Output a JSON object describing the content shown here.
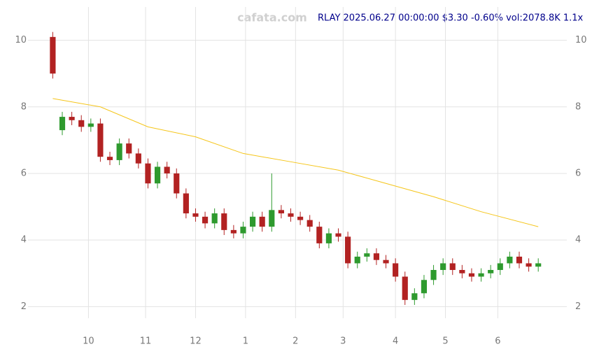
{
  "chart_data": {
    "type": "candlestick",
    "title": "RLAY 2025.06.27 00:00:00 $3.30 -0.60% vol:2078.8K 1.1x",
    "watermark": "cafata.com",
    "x": [
      0,
      4,
      8,
      12,
      16,
      20,
      24,
      28,
      32,
      36,
      40,
      44,
      48,
      52,
      56,
      60,
      64,
      68,
      72,
      76,
      80,
      84,
      88,
      92,
      96,
      100,
      104,
      108,
      112,
      116,
      120,
      124,
      128,
      132,
      136,
      140,
      144,
      148,
      152,
      156,
      160,
      164,
      168,
      172,
      176,
      180,
      184,
      188,
      192,
      196,
      200,
      204
    ],
    "open": [
      10.1,
      7.3,
      7.7,
      7.6,
      7.4,
      7.5,
      6.5,
      6.4,
      6.9,
      6.6,
      6.3,
      5.7,
      6.2,
      6.0,
      5.4,
      4.8,
      4.7,
      4.5,
      4.8,
      4.3,
      4.2,
      4.4,
      4.7,
      4.4,
      4.9,
      4.8,
      4.7,
      4.6,
      4.4,
      3.9,
      4.2,
      4.1,
      3.3,
      3.5,
      3.6,
      3.4,
      3.3,
      2.9,
      2.2,
      2.4,
      2.8,
      3.1,
      3.3,
      3.1,
      3.0,
      2.9,
      3.0,
      3.1,
      3.3,
      3.5,
      3.3,
      3.2
    ],
    "high": [
      10.25,
      7.85,
      7.85,
      7.75,
      7.65,
      7.65,
      6.65,
      7.05,
      7.05,
      6.75,
      6.45,
      6.35,
      6.35,
      6.15,
      5.55,
      4.95,
      4.85,
      4.95,
      4.95,
      4.45,
      4.55,
      4.85,
      4.85,
      6.0,
      5.05,
      4.95,
      4.85,
      4.75,
      4.55,
      4.35,
      4.35,
      4.25,
      3.65,
      3.75,
      3.75,
      3.55,
      3.45,
      3.05,
      2.55,
      2.95,
      3.25,
      3.45,
      3.45,
      3.25,
      3.15,
      3.15,
      3.25,
      3.45,
      3.65,
      3.65,
      3.45,
      3.45
    ],
    "low": [
      8.85,
      7.15,
      7.45,
      7.25,
      7.25,
      6.35,
      6.25,
      6.25,
      6.45,
      6.15,
      5.55,
      5.55,
      5.85,
      5.25,
      4.65,
      4.55,
      4.35,
      4.35,
      4.15,
      4.05,
      4.05,
      4.25,
      4.25,
      4.25,
      4.65,
      4.55,
      4.45,
      4.25,
      3.75,
      3.75,
      3.95,
      3.15,
      3.15,
      3.35,
      3.25,
      3.15,
      2.75,
      2.05,
      2.05,
      2.25,
      2.65,
      2.95,
      2.95,
      2.85,
      2.75,
      2.75,
      2.85,
      2.95,
      3.15,
      3.15,
      3.05,
      3.05
    ],
    "close": [
      9.0,
      7.7,
      7.6,
      7.4,
      7.5,
      6.5,
      6.4,
      6.9,
      6.6,
      6.3,
      5.7,
      6.2,
      6.0,
      5.4,
      4.8,
      4.7,
      4.5,
      4.8,
      4.3,
      4.2,
      4.4,
      4.7,
      4.4,
      4.9,
      4.8,
      4.7,
      4.6,
      4.4,
      3.9,
      4.2,
      4.1,
      3.3,
      3.5,
      3.6,
      3.4,
      3.3,
      2.9,
      2.2,
      2.4,
      2.8,
      3.1,
      3.3,
      3.1,
      3.0,
      2.9,
      3.0,
      3.1,
      3.3,
      3.5,
      3.3,
      3.2,
      3.3
    ],
    "up_color": "#2e9a2e",
    "down_color": "#b22222",
    "line": {
      "color": "#f5c518",
      "x": [
        0,
        20,
        40,
        60,
        80,
        100,
        120,
        140,
        160,
        180,
        204
      ],
      "values": [
        8.25,
        8.0,
        7.4,
        7.1,
        6.6,
        6.35,
        6.1,
        5.7,
        5.3,
        4.85,
        4.4
      ]
    },
    "xlim": [
      -1,
      206
    ],
    "xticks": [
      {
        "value": 15,
        "label": "10"
      },
      {
        "value": 39,
        "label": "11"
      },
      {
        "value": 60,
        "label": "12"
      },
      {
        "value": 81,
        "label": "1"
      },
      {
        "value": 102,
        "label": "2"
      },
      {
        "value": 122,
        "label": "3"
      },
      {
        "value": 144,
        "label": "4"
      },
      {
        "value": 165,
        "label": "5"
      },
      {
        "value": 187,
        "label": "6"
      }
    ],
    "ylim": [
      1.65,
      11
    ],
    "yticks": [
      2,
      4,
      6,
      8,
      10
    ],
    "grid": true
  }
}
